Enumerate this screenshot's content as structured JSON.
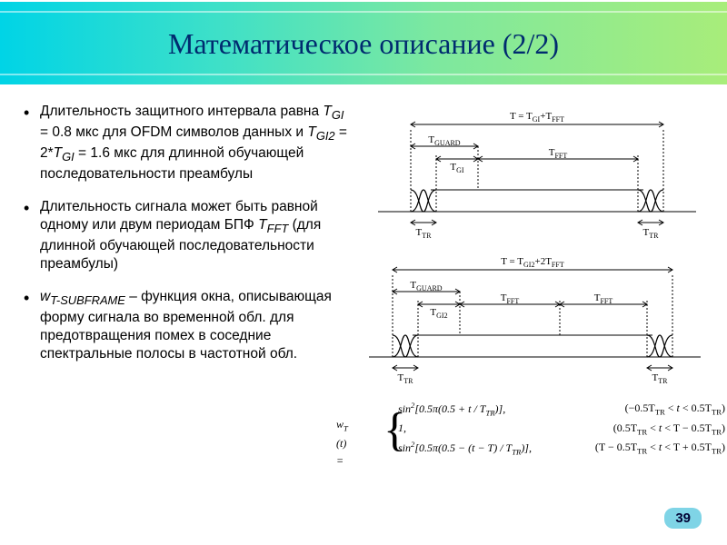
{
  "title": "Математическое описание (2/2)",
  "slide_number": "39",
  "bullets": [
    {
      "html": "Длительность защитного интервала равна <span class='sub'>T<sub>GI</sub></span> = 0.8 мкс для OFDM символов данных и <span class='sub'>T<sub>GI2</sub></span> = 2*<span class='sub'>T<sub>GI</sub></span> = 1.6 мкс для длинной обучающей последовательности преамбулы"
    },
    {
      "html": "Длительность сигнала может быть равной одному или двум периодам БПФ <span class='sub'>T<sub>FFT</sub></span> (для длинной обучающей последовательности преамбулы)"
    },
    {
      "html": "<span class='sub'>w<sub>T-SUBFRAME</sub></span> – функция окна, описывающая форму сигнала во временной обл. для предотвращения помех в соседние спектральные полосы в частотной обл."
    }
  ],
  "diagram": {
    "colors": {
      "stroke": "#000000",
      "text": "#000000",
      "bg": "#ffffff"
    },
    "font_size_label": 11,
    "font_size_sub": 8,
    "top": {
      "overall_label": "T = T",
      "overall_sub1": "GI",
      "overall_plus": "+T",
      "overall_sub2": "FFT",
      "seg1_label": "T",
      "seg1_sub": "GUARD",
      "seg1b_label": "T",
      "seg1b_sub": "GI",
      "seg2_label": "T",
      "seg2_sub": "FFT",
      "ttr_label": "T",
      "ttr_sub": "TR"
    },
    "bottom": {
      "overall_label": "T = T",
      "overall_sub1": "GI2",
      "overall_plus": "+2T",
      "overall_sub2": "FFT",
      "seg1_label": "T",
      "seg1_sub": "GUARD",
      "seg1b_label": "T",
      "seg1b_sub": "GI2",
      "seg2_label": "T",
      "seg2_sub": "FFT",
      "seg3_label": "T",
      "seg3_sub": "FFT",
      "ttr_label": "T",
      "ttr_sub": "TR"
    }
  },
  "formula": {
    "lhs": "w",
    "lhs_sub": "T",
    "lhs_arg": " (t) = ",
    "rows": [
      {
        "expr_html": "sin<span class='sup2'>2</span>[0.5π(0.5 + <i>t</i> / T<span class='sub2'>TR</span>)],",
        "cond_html": "(−0.5T<span class='sub2'>TR</span> < <i>t</i> < 0.5T<span class='sub2'>TR</span>)"
      },
      {
        "expr_html": "1,",
        "cond_html": "(0.5T<span class='sub2'>TR</span> < <i>t</i> < T − 0.5T<span class='sub2'>TR</span>)"
      },
      {
        "expr_html": "sin<span class='sup2'>2</span>[0.5π(0.5 − (<i>t</i> − T) / T<span class='sub2'>TR</span>)],",
        "cond_html": "(T − 0.5T<span class='sub2'>TR</span> < <i>t</i> < T + 0.5T<span class='sub2'>TR</span>)"
      }
    ]
  },
  "style": {
    "title_color": "#002b6f",
    "title_fontsize": 32,
    "header_gradient": [
      "#00d4e6",
      "#3ee0c8",
      "#7de89f",
      "#a8ed7a"
    ],
    "bullet_fontsize": 15.5,
    "slidenum_bg": "#7fd4e6",
    "formula_fontsize": 12
  }
}
